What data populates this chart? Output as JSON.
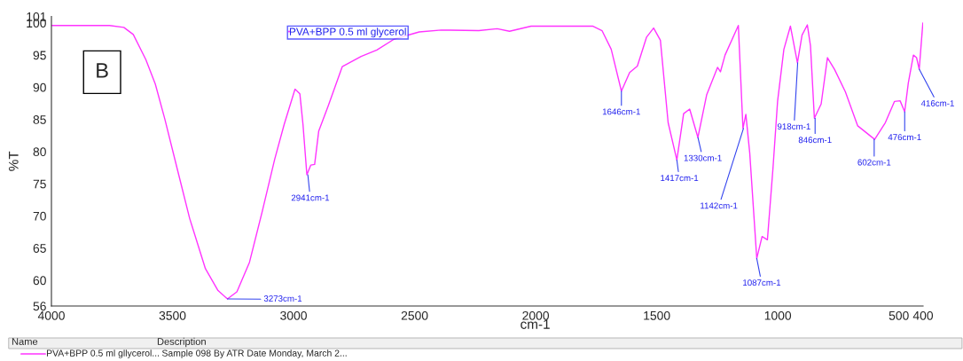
{
  "chart_data": {
    "type": "line",
    "xlabel": "cm-1",
    "ylabel": "%T",
    "xlim": [
      4000,
      400
    ],
    "xticks": [
      4000,
      3500,
      3000,
      2500,
      2000,
      1500,
      1000,
      500,
      400
    ],
    "ylim": [
      56,
      101
    ],
    "yticks": [
      56,
      60,
      65,
      70,
      75,
      80,
      85,
      90,
      95,
      100,
      101
    ],
    "grid": false,
    "legend": "top",
    "marker": "none",
    "line_style": "solid",
    "series": [
      {
        "name": "PVA+BPP 0.5 ml glycerol",
        "color": "#ff33ff",
        "x": [
          4000,
          3760,
          3701,
          3662,
          3610,
          3571,
          3532,
          3481,
          3429,
          3364,
          3312,
          3273,
          3234,
          3182,
          3130,
          3078,
          3039,
          2994,
          2974,
          2961,
          2945,
          2929,
          2913,
          2896,
          2857,
          2799,
          2721,
          2656,
          2584,
          2481,
          2390,
          2235,
          2159,
          2108,
          2019,
          1765,
          1726,
          1688,
          1646,
          1612,
          1580,
          1542,
          1513,
          1485,
          1453,
          1417,
          1389,
          1364,
          1330,
          1294,
          1249,
          1237,
          1218,
          1163,
          1144,
          1132,
          1116,
          1087,
          1065,
          1043,
          1020,
          1001,
          975,
          948,
          919,
          900,
          878,
          865,
          849,
          821,
          795,
          766,
          721,
          670,
          600,
          556,
          518,
          495,
          476,
          461,
          440,
          427,
          416,
          401
        ],
        "values": [
          99.6,
          99.6,
          99.3,
          98.2,
          94.3,
          90.5,
          85.1,
          77.4,
          69.6,
          61.8,
          58.4,
          57.1,
          58.2,
          62.8,
          70.6,
          78.8,
          84.2,
          89.7,
          89.0,
          84.2,
          76.4,
          77.9,
          78.0,
          83.2,
          87.1,
          93.2,
          94.8,
          95.8,
          97.5,
          98.6,
          98.9,
          98.8,
          99.1,
          98.7,
          99.5,
          99.5,
          98.8,
          95.9,
          89.4,
          92.3,
          93.3,
          97.8,
          99.2,
          97.3,
          84.5,
          78.7,
          85.9,
          86.6,
          82.2,
          88.8,
          93.1,
          92.4,
          95.0,
          99.6,
          83.6,
          85.8,
          79.8,
          63.4,
          66.8,
          66.3,
          77.4,
          87.8,
          95.9,
          99.5,
          93.8,
          98.1,
          99.7,
          96.4,
          85.2,
          87.4,
          94.6,
          92.8,
          89.3,
          84.0,
          81.9,
          84.5,
          87.8,
          87.9,
          86.2,
          90.7,
          95.0,
          94.6,
          92.8,
          100.0
        ]
      }
    ],
    "annotations": [
      {
        "text": "3273cm-1",
        "x": 3273,
        "y": 57.1
      },
      {
        "text": "2941cm-1",
        "x": 2941,
        "y": 76.4
      },
      {
        "text": "1646cm-1",
        "x": 1646,
        "y": 89.4
      },
      {
        "text": "1417cm-1",
        "x": 1417,
        "y": 78.7
      },
      {
        "text": "1330cm-1",
        "x": 1330,
        "y": 82.2
      },
      {
        "text": "1142cm-1",
        "x": 1142,
        "y": 83.6
      },
      {
        "text": "1087cm-1",
        "x": 1087,
        "y": 63.4
      },
      {
        "text": "918cm-1",
        "x": 918,
        "y": 93.8
      },
      {
        "text": "846cm-1",
        "x": 846,
        "y": 85.2
      },
      {
        "text": "602cm-1",
        "x": 602,
        "y": 81.9
      },
      {
        "text": "476cm-1",
        "x": 476,
        "y": 86.2
      },
      {
        "text": "416cm-1",
        "x": 416,
        "y": 92.8
      },
      "B",
      "Name",
      "Description",
      "PVA+BPP 0.5 ml gllycerol...",
      "Sample 098 By ATR Date Monday, March 2..."
    ]
  }
}
